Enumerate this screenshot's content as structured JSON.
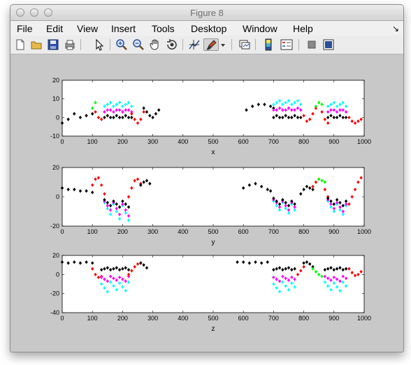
{
  "window": {
    "title": "Figure 8"
  },
  "menubar": {
    "items": [
      "File",
      "Edit",
      "View",
      "Insert",
      "Tools",
      "Desktop",
      "Window",
      "Help"
    ]
  },
  "toolbar": {
    "icons": [
      "new-file-icon",
      "open-folder-icon",
      "save-icon",
      "print-icon",
      "pointer-arrow-icon",
      "zoom-in-icon",
      "zoom-out-icon",
      "pan-hand-icon",
      "rotate-3d-icon",
      "data-cursor-icon",
      "brush-icon",
      "link-plot-icon",
      "colorbar-icon",
      "legend-icon",
      "hide-tools-icon",
      "show-tools-icon"
    ]
  },
  "colors": {
    "black": "#000000",
    "red": "#ff0000",
    "green": "#00ff00",
    "cyan": "#00ffff",
    "magenta": "#ff00ff"
  },
  "chart_data": [
    {
      "type": "scatter",
      "xlabel": "x",
      "xlim": [
        0,
        1000
      ],
      "ylim": [
        -10,
        20
      ],
      "xticks": [
        "0",
        "100",
        "200",
        "300",
        "400",
        "500",
        "600",
        "700",
        "800",
        "900",
        "1000"
      ],
      "yticks": [
        "-10",
        "0",
        "10",
        "20"
      ],
      "segments": [
        {
          "color": "black",
          "x": [
            0,
            20,
            40,
            60,
            80,
            100
          ],
          "y": [
            -3,
            -1,
            2,
            0,
            1,
            2
          ]
        },
        {
          "color": "green",
          "x": [
            100,
            110
          ],
          "y": [
            5,
            8
          ]
        },
        {
          "color": "red",
          "x": [
            110,
            120,
            130
          ],
          "y": [
            3,
            0,
            -1
          ]
        },
        {
          "color": "cyan",
          "x": [
            140,
            150,
            160,
            170,
            180,
            190,
            200,
            210,
            220,
            230
          ],
          "y": [
            6,
            7,
            8,
            6,
            7,
            8,
            6,
            7,
            8,
            6
          ]
        },
        {
          "color": "magenta",
          "x": [
            140,
            150,
            160,
            170,
            180,
            190,
            200,
            210,
            220,
            230
          ],
          "y": [
            3,
            4,
            4,
            3,
            4,
            4,
            3,
            4,
            4,
            3
          ]
        },
        {
          "color": "black",
          "x": [
            140,
            150,
            160,
            170,
            180,
            190,
            200,
            210,
            220,
            230
          ],
          "y": [
            0,
            1,
            0,
            0,
            1,
            0,
            0,
            1,
            0,
            0
          ]
        },
        {
          "color": "red",
          "x": [
            230,
            240,
            250,
            260,
            270
          ],
          "y": [
            2,
            -1,
            -3,
            -1,
            3
          ]
        },
        {
          "color": "black",
          "x": [
            270,
            280,
            290,
            300,
            310,
            320
          ],
          "y": [
            5,
            3,
            1,
            0,
            2,
            4
          ]
        },
        {
          "color": "black",
          "x": [
            610,
            630,
            650,
            670,
            690,
            700
          ],
          "y": [
            4,
            6,
            7,
            7,
            6,
            5
          ]
        },
        {
          "color": "cyan",
          "x": [
            700,
            710,
            720,
            730,
            740,
            750,
            760,
            770,
            780,
            790
          ],
          "y": [
            7,
            8,
            9,
            7,
            8,
            9,
            7,
            8,
            9,
            7
          ]
        },
        {
          "color": "magenta",
          "x": [
            700,
            710,
            720,
            730,
            740,
            750,
            760,
            770,
            780,
            790
          ],
          "y": [
            4,
            4,
            5,
            4,
            4,
            5,
            4,
            4,
            5,
            4
          ]
        },
        {
          "color": "black",
          "x": [
            700,
            710,
            720,
            730,
            740,
            750,
            760,
            770,
            780,
            790
          ],
          "y": [
            0,
            1,
            0,
            0,
            1,
            0,
            0,
            1,
            0,
            0
          ]
        },
        {
          "color": "red",
          "x": [
            800,
            810,
            820,
            830,
            840
          ],
          "y": [
            1,
            -2,
            -1,
            2,
            5
          ]
        },
        {
          "color": "green",
          "x": [
            840,
            850,
            860
          ],
          "y": [
            6,
            8,
            7
          ]
        },
        {
          "color": "red",
          "x": [
            860,
            870,
            880
          ],
          "y": [
            3,
            -1,
            -3
          ]
        },
        {
          "color": "cyan",
          "x": [
            880,
            890,
            900,
            910,
            920,
            930,
            940
          ],
          "y": [
            6,
            7,
            8,
            6,
            7,
            8,
            6
          ]
        },
        {
          "color": "magenta",
          "x": [
            880,
            890,
            900,
            910,
            920,
            930,
            940
          ],
          "y": [
            3,
            4,
            4,
            3,
            4,
            4,
            3
          ]
        },
        {
          "color": "black",
          "x": [
            880,
            890,
            900,
            910,
            920,
            930,
            940
          ],
          "y": [
            0,
            1,
            0,
            0,
            1,
            0,
            0
          ]
        },
        {
          "color": "red",
          "x": [
            950,
            960,
            970,
            980,
            990
          ],
          "y": [
            0,
            -2,
            -3,
            -2,
            -1
          ]
        }
      ]
    },
    {
      "type": "scatter",
      "xlabel": "y",
      "xlim": [
        0,
        1000
      ],
      "ylim": [
        -20,
        20
      ],
      "xticks": [
        "0",
        "100",
        "200",
        "300",
        "400",
        "500",
        "600",
        "700",
        "800",
        "900",
        "1000"
      ],
      "yticks": [
        "-20",
        "0",
        "20"
      ],
      "segments": [
        {
          "color": "black",
          "x": [
            0,
            20,
            40,
            60,
            80,
            100
          ],
          "y": [
            6,
            5,
            5,
            4,
            4,
            3
          ]
        },
        {
          "color": "red",
          "x": [
            100,
            110,
            120,
            130,
            140
          ],
          "y": [
            8,
            12,
            13,
            8,
            2
          ]
        },
        {
          "color": "cyan",
          "x": [
            140,
            150,
            160,
            170,
            180,
            190,
            200,
            210,
            220
          ],
          "y": [
            -4,
            -8,
            -12,
            -5,
            -10,
            -15,
            -6,
            -11,
            -16
          ]
        },
        {
          "color": "magenta",
          "x": [
            140,
            150,
            160,
            170,
            180,
            190,
            200,
            210,
            220
          ],
          "y": [
            -3,
            -6,
            -9,
            -4,
            -8,
            -12,
            -5,
            -9,
            -13
          ]
        },
        {
          "color": "black",
          "x": [
            140,
            150,
            160,
            170,
            180,
            190,
            200,
            210,
            220
          ],
          "y": [
            -2,
            -4,
            -6,
            -3,
            -5,
            -7,
            -3,
            -5,
            -7
          ]
        },
        {
          "color": "red",
          "x": [
            220,
            230,
            240,
            250,
            260
          ],
          "y": [
            0,
            6,
            11,
            12,
            9
          ]
        },
        {
          "color": "black",
          "x": [
            260,
            270,
            280,
            290
          ],
          "y": [
            8,
            10,
            11,
            9
          ]
        },
        {
          "color": "black",
          "x": [
            600,
            620,
            640,
            660,
            680,
            690
          ],
          "y": [
            6,
            8,
            9,
            7,
            5,
            4
          ]
        },
        {
          "color": "cyan",
          "x": [
            700,
            710,
            720,
            730,
            740,
            750,
            760,
            770
          ],
          "y": [
            -3,
            -6,
            -9,
            -4,
            -8,
            -11,
            -5,
            -9
          ]
        },
        {
          "color": "magenta",
          "x": [
            700,
            710,
            720,
            730,
            740,
            750,
            760,
            770
          ],
          "y": [
            -2,
            -4,
            -7,
            -3,
            -6,
            -9,
            -4,
            -7
          ]
        },
        {
          "color": "black",
          "x": [
            700,
            710,
            720,
            730,
            740,
            750,
            760,
            770
          ],
          "y": [
            -1,
            -3,
            -5,
            -2,
            -4,
            -6,
            -3,
            -5
          ]
        },
        {
          "color": "black",
          "x": [
            790,
            800,
            810,
            820,
            830
          ],
          "y": [
            2,
            5,
            7,
            6,
            5
          ]
        },
        {
          "color": "red",
          "x": [
            830,
            840,
            850
          ],
          "y": [
            7,
            10,
            12
          ]
        },
        {
          "color": "green",
          "x": [
            850,
            860,
            870
          ],
          "y": [
            12,
            11,
            10
          ]
        },
        {
          "color": "red",
          "x": [
            870,
            880
          ],
          "y": [
            5,
            0
          ]
        },
        {
          "color": "cyan",
          "x": [
            880,
            890,
            900,
            910,
            920,
            930,
            940
          ],
          "y": [
            -3,
            -7,
            -10,
            -5,
            -9,
            -12,
            -6
          ]
        },
        {
          "color": "magenta",
          "x": [
            880,
            890,
            900,
            910,
            920,
            930,
            940
          ],
          "y": [
            -2,
            -5,
            -8,
            -4,
            -7,
            -10,
            -5
          ]
        },
        {
          "color": "black",
          "x": [
            880,
            890,
            900,
            910,
            920,
            930,
            940
          ],
          "y": [
            -1,
            -3,
            -5,
            -2,
            -4,
            -6,
            -3
          ]
        },
        {
          "color": "red",
          "x": [
            950,
            960,
            970,
            980,
            990
          ],
          "y": [
            -5,
            0,
            5,
            10,
            13
          ]
        }
      ]
    },
    {
      "type": "scatter",
      "xlabel": "z",
      "xlim": [
        0,
        1000
      ],
      "ylim": [
        -40,
        20
      ],
      "xticks": [
        "0",
        "100",
        "200",
        "300",
        "400",
        "500",
        "600",
        "700",
        "800",
        "900",
        "1000"
      ],
      "yticks": [
        "-40",
        "-20",
        "0",
        "20"
      ],
      "segments": [
        {
          "color": "black",
          "x": [
            0,
            20,
            40,
            60,
            80,
            100
          ],
          "y": [
            13,
            12,
            13,
            12,
            13,
            12
          ]
        },
        {
          "color": "red",
          "x": [
            100,
            110,
            120,
            130
          ],
          "y": [
            6,
            0,
            -3,
            -2
          ]
        },
        {
          "color": "cyan",
          "x": [
            130,
            140,
            150,
            160,
            170,
            180,
            190,
            200,
            210,
            220
          ],
          "y": [
            -10,
            -14,
            -18,
            -8,
            -12,
            -16,
            -9,
            -13,
            -17,
            -8
          ]
        },
        {
          "color": "magenta",
          "x": [
            130,
            140,
            150,
            160,
            170,
            180,
            190,
            200,
            210,
            220
          ],
          "y": [
            -3,
            -5,
            -7,
            -2,
            -4,
            -6,
            -3,
            -5,
            -7,
            -2
          ]
        },
        {
          "color": "black",
          "x": [
            130,
            140,
            150,
            160,
            170,
            180,
            190,
            200,
            210,
            220
          ],
          "y": [
            5,
            6,
            7,
            5,
            6,
            7,
            5,
            6,
            7,
            5
          ]
        },
        {
          "color": "red",
          "x": [
            220,
            230,
            240,
            250,
            260
          ],
          "y": [
            0,
            4,
            8,
            11,
            12
          ]
        },
        {
          "color": "black",
          "x": [
            260,
            270,
            280
          ],
          "y": [
            12,
            10,
            7
          ]
        },
        {
          "color": "black",
          "x": [
            580,
            600,
            620,
            640,
            660,
            680
          ],
          "y": [
            13,
            13,
            12,
            13,
            12,
            13
          ]
        },
        {
          "color": "cyan",
          "x": [
            700,
            710,
            720,
            730,
            740,
            750,
            760,
            770
          ],
          "y": [
            -10,
            -14,
            -18,
            -8,
            -12,
            -16,
            -9,
            -13
          ]
        },
        {
          "color": "magenta",
          "x": [
            700,
            710,
            720,
            730,
            740,
            750,
            760,
            770
          ],
          "y": [
            -3,
            -5,
            -7,
            -2,
            -4,
            -6,
            -3,
            -5
          ]
        },
        {
          "color": "black",
          "x": [
            700,
            710,
            720,
            730,
            740,
            750,
            760,
            770
          ],
          "y": [
            5,
            6,
            7,
            5,
            6,
            7,
            5,
            6
          ]
        },
        {
          "color": "red",
          "x": [
            780,
            790,
            800
          ],
          "y": [
            0,
            4,
            8
          ]
        },
        {
          "color": "black",
          "x": [
            800,
            810,
            820,
            830
          ],
          "y": [
            12,
            13,
            11,
            8
          ]
        },
        {
          "color": "green",
          "x": [
            830,
            840,
            850,
            860
          ],
          "y": [
            6,
            3,
            0,
            -2
          ]
        },
        {
          "color": "cyan",
          "x": [
            870,
            880,
            890,
            900,
            910,
            920,
            930,
            940
          ],
          "y": [
            -8,
            -12,
            -16,
            -9,
            -13,
            -17,
            -8,
            -12
          ]
        },
        {
          "color": "magenta",
          "x": [
            870,
            880,
            890,
            900,
            910,
            920,
            930,
            940
          ],
          "y": [
            -2,
            -4,
            -6,
            -3,
            -5,
            -7,
            -2,
            -4
          ]
        },
        {
          "color": "black",
          "x": [
            870,
            880,
            890,
            900,
            910,
            920,
            930,
            940
          ],
          "y": [
            5,
            6,
            7,
            5,
            6,
            7,
            5,
            6
          ]
        },
        {
          "color": "red",
          "x": [
            950,
            960,
            970,
            980,
            990
          ],
          "y": [
            6,
            2,
            -1,
            0,
            3
          ]
        }
      ]
    }
  ]
}
